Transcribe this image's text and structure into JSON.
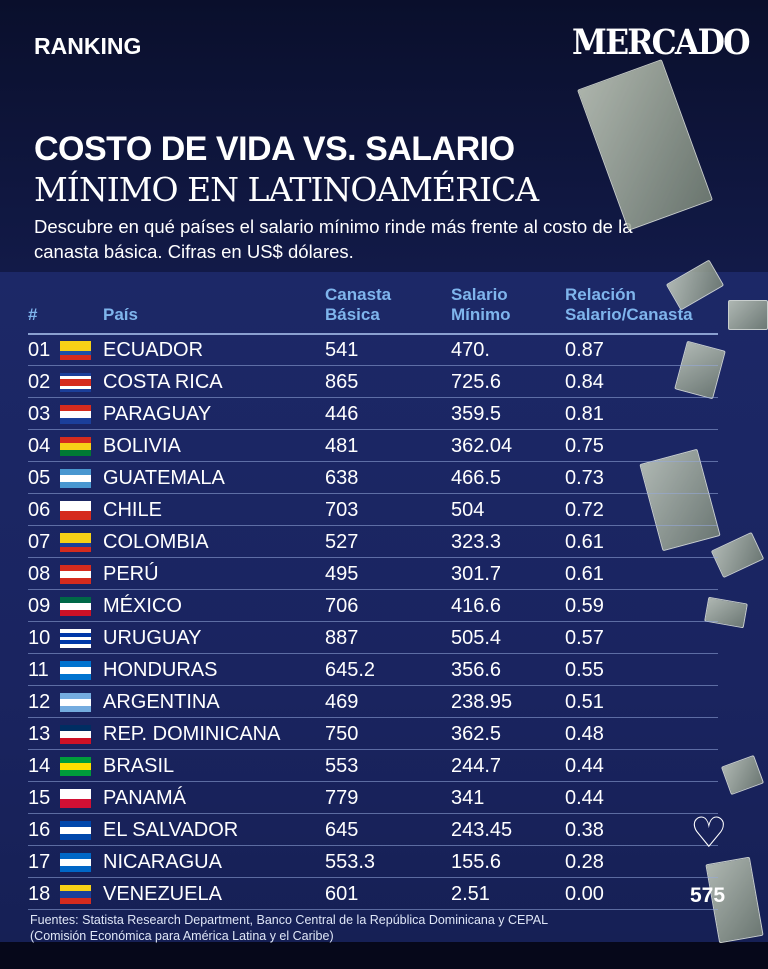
{
  "header": {
    "section": "RANKING",
    "brand": "MERCADO",
    "title_line1": "COSTO DE VIDA VS. SALARIO",
    "title_line2": "MÍNIMO EN LATINOAMÉRICA",
    "description": "Descubre en qué países el salario mínimo rinde más frente al costo de la canasta básica. Cifras en US$ dólares."
  },
  "columns": {
    "rank": "#",
    "country": "País",
    "basket": [
      "Canasta",
      "Básica"
    ],
    "wage": [
      "Salario",
      "Mínimo"
    ],
    "ratio": [
      "Relación",
      "Salario/Canasta"
    ]
  },
  "rows": [
    {
      "rank": "01",
      "country": "ECUADOR",
      "basket": "541",
      "wage": "470.",
      "ratio": "0.87",
      "flag": [
        "#f7d117",
        "#f7d117",
        "#1d4fa8",
        "#d52b1e"
      ]
    },
    {
      "rank": "02",
      "country": "COSTA RICA",
      "basket": "865",
      "wage": "725.6",
      "ratio": "0.84",
      "flag": [
        "#1b3f9a",
        "#ffffff",
        "#d52b1e",
        "#d52b1e",
        "#ffffff",
        "#1b3f9a"
      ]
    },
    {
      "rank": "03",
      "country": "PARAGUAY",
      "basket": "446",
      "wage": "359.5",
      "ratio": "0.81",
      "flag": [
        "#d52b1e",
        "#ffffff",
        "#1b3f9a"
      ]
    },
    {
      "rank": "04",
      "country": "BOLIVIA",
      "basket": "481",
      "wage": "362.04",
      "ratio": "0.75",
      "flag": [
        "#d52b1e",
        "#f7d117",
        "#007934"
      ]
    },
    {
      "rank": "05",
      "country": "GUATEMALA",
      "basket": "638",
      "wage": "466.5",
      "ratio": "0.73",
      "flag": [
        "#4997d0",
        "#ffffff",
        "#4997d0"
      ]
    },
    {
      "rank": "06",
      "country": "CHILE",
      "basket": "703",
      "wage": "504",
      "ratio": "0.72",
      "flag": [
        "#ffffff",
        "#d52b1e"
      ]
    },
    {
      "rank": "07",
      "country": "COLOMBIA",
      "basket": "527",
      "wage": "323.3",
      "ratio": "0.61",
      "flag": [
        "#f7d117",
        "#f7d117",
        "#1b3f9a",
        "#d52b1e"
      ]
    },
    {
      "rank": "08",
      "country": "PERÚ",
      "basket": "495",
      "wage": "301.7",
      "ratio": "0.61",
      "flag": [
        "#d52b1e",
        "#ffffff",
        "#d52b1e"
      ]
    },
    {
      "rank": "09",
      "country": "MÉXICO",
      "basket": "706",
      "wage": "416.6",
      "ratio": "0.59",
      "flag": [
        "#006847",
        "#ffffff",
        "#ce1126"
      ]
    },
    {
      "rank": "10",
      "country": "URUGUAY",
      "basket": "887",
      "wage": "505.4",
      "ratio": "0.57",
      "flag": [
        "#ffffff",
        "#0038a8",
        "#ffffff",
        "#0038a8",
        "#ffffff"
      ]
    },
    {
      "rank": "11",
      "country": "HONDURAS",
      "basket": "645.2",
      "wage": "356.6",
      "ratio": "0.55",
      "flag": [
        "#0073cf",
        "#ffffff",
        "#0073cf"
      ]
    },
    {
      "rank": "12",
      "country": "ARGENTINA",
      "basket": "469",
      "wage": "238.95",
      "ratio": "0.51",
      "flag": [
        "#74acdf",
        "#ffffff",
        "#74acdf"
      ]
    },
    {
      "rank": "13",
      "country": "REP. DOMINICANA",
      "basket": "750",
      "wage": "362.5",
      "ratio": "0.48",
      "flag": [
        "#002d62",
        "#ffffff",
        "#ce1126"
      ]
    },
    {
      "rank": "14",
      "country": "BRASIL",
      "basket": "553",
      "wage": "244.7",
      "ratio": "0.44",
      "flag": [
        "#009c3b",
        "#ffdf00",
        "#009c3b"
      ]
    },
    {
      "rank": "15",
      "country": "PANAMÁ",
      "basket": "779",
      "wage": "341",
      "ratio": "0.44",
      "flag": [
        "#ffffff",
        "#d21034"
      ]
    },
    {
      "rank": "16",
      "country": "EL SALVADOR",
      "basket": "645",
      "wage": "243.45",
      "ratio": "0.38",
      "flag": [
        "#0047ab",
        "#ffffff",
        "#0047ab"
      ]
    },
    {
      "rank": "17",
      "country": "NICARAGUA",
      "basket": "553.3",
      "wage": "155.6",
      "ratio": "0.28",
      "flag": [
        "#0067c6",
        "#ffffff",
        "#0067c6"
      ]
    },
    {
      "rank": "18",
      "country": "VENEZUELA",
      "basket": "601",
      "wage": "2.51",
      "ratio": "0.00",
      "flag": [
        "#f7d117",
        "#1b3f9a",
        "#d52b1e"
      ]
    }
  ],
  "sources": "Fuentes: Statista Research Department, Banco Central de la República Dominicana y CEPAL (Comisión Económica para América Latina y el Caribe)",
  "social": {
    "likes": "575"
  }
}
